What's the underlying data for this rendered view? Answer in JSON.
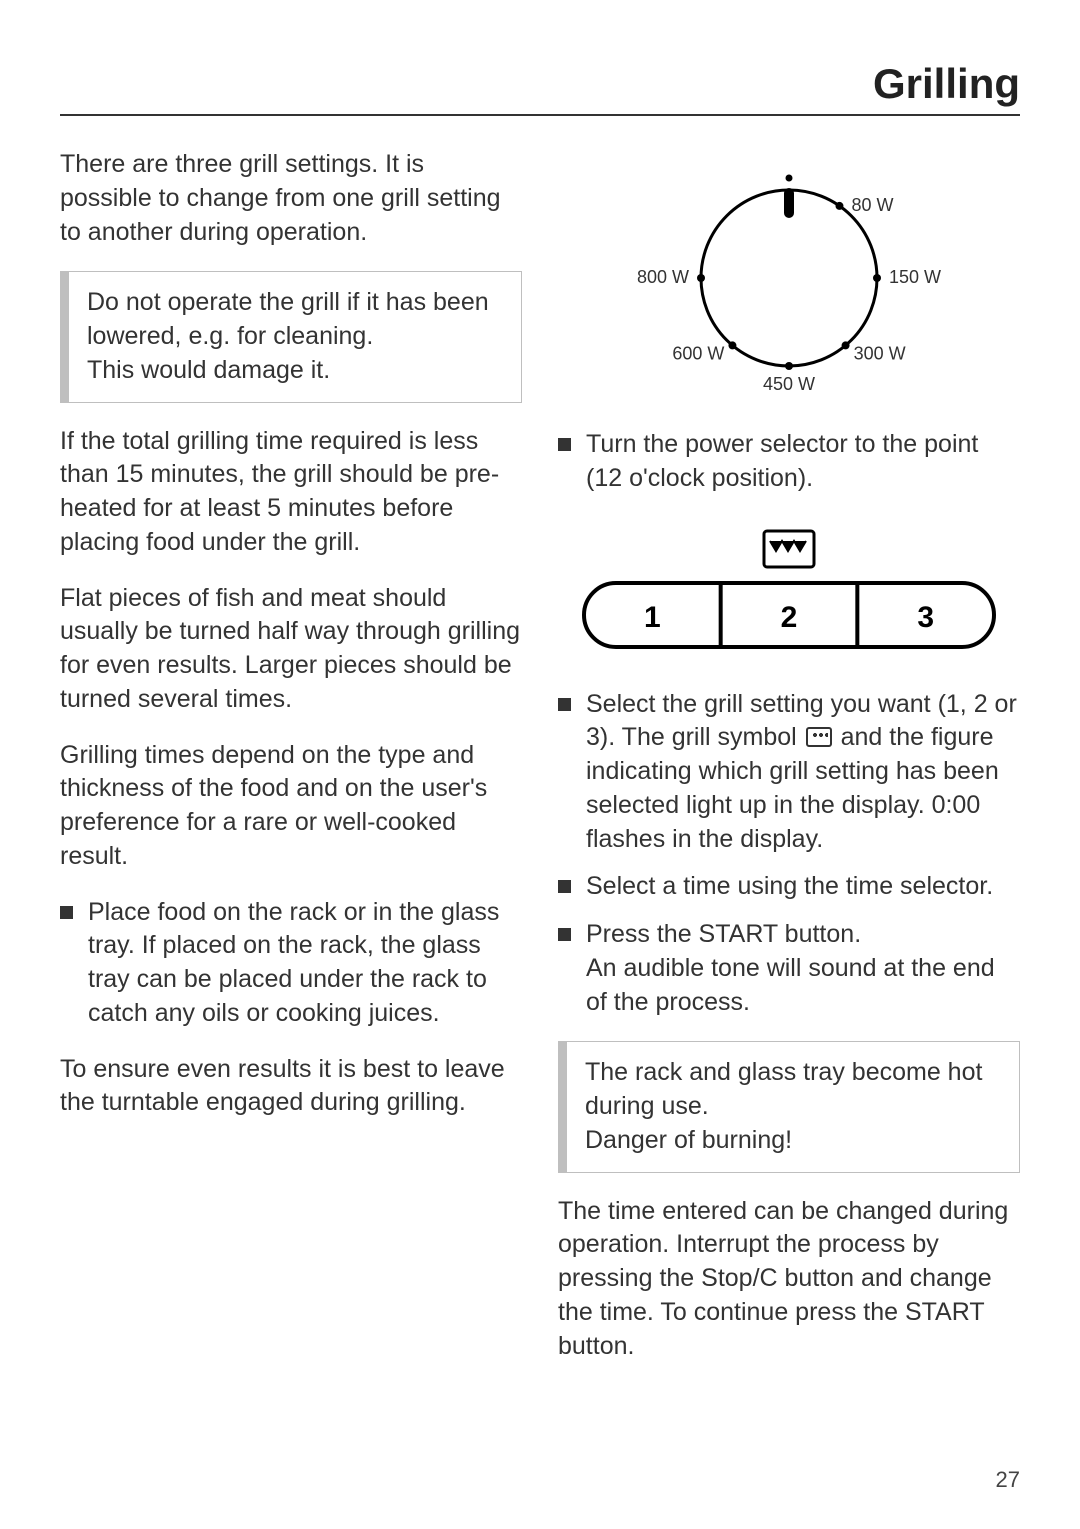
{
  "title": "Grilling",
  "page_number": "27",
  "left": {
    "intro": "There are three grill settings. It is possible to change from one grill setting to another during operation.",
    "callout1_line1": "Do not operate the grill if it has been lowered, e.g. for cleaning.",
    "callout1_line2": "This would damage it.",
    "p2": "If the total grilling time required is less than 15 minutes, the grill should be pre-heated for at least 5 minutes before placing food under the grill.",
    "p3": "Flat pieces of fish and meat should usually be turned half way through grilling for even results. Larger pieces should be turned several times.",
    "p4": "Grilling times depend on the type and thickness of the food and on the user's preference for a rare or well-cooked result.",
    "bullet1": "Place food on the rack or in the glass tray. If placed on the rack, the glass tray can be placed under the rack to catch any oils or cooking juices.",
    "p5": "To ensure even results it is best to leave the turntable engaged during grilling."
  },
  "right": {
    "dial": {
      "labels": [
        "80 W",
        "150 W",
        "300 W",
        "450 W",
        "600 W",
        "800 W"
      ],
      "radius": 88,
      "stroke": "#000000",
      "font_size": 18
    },
    "b1": "Turn the power selector to the point (12 o'clock position).",
    "buttons": {
      "labels": [
        "1",
        "2",
        "3"
      ],
      "font_size": 30,
      "stroke": "#000000"
    },
    "b2_pre": "Select the grill setting you want (1, 2 or 3). The grill symbol ",
    "b2_post": " and the figure indicating which grill setting has been selected light up in the display. 0:00 flashes in the display.",
    "b3": "Select a time using the time selector.",
    "b4_line1": "Press the START button.",
    "b4_line2": "An audible tone will sound at the end of the process.",
    "callout2_line1": "The rack and glass tray become hot during use.",
    "callout2_line2": "Danger of burning!",
    "p_end": "The time entered can be changed during operation. Interrupt the process by pressing the Stop/C button and change the time. To continue press the START button."
  }
}
